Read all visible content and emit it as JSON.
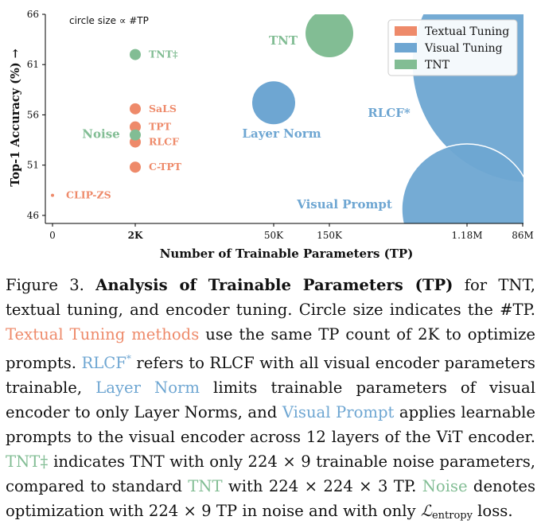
{
  "chart_data": {
    "type": "scatter",
    "xlabel": "Number of Trainable Parameters (TP)",
    "ylabel": "Top-1 Accuracy (%) →",
    "annotation": "circle size ∝ #TP",
    "x_ticks": [
      "0",
      "2K",
      "50K",
      "150K",
      "1.18M",
      "86M"
    ],
    "y_ticks": [
      46,
      51,
      56,
      61,
      66
    ],
    "ylim": [
      45.2,
      66
    ],
    "legend_position": "top-right",
    "colors": {
      "textual": "#ee8a6a",
      "visual": "#6ea6d2",
      "tnt": "#82bd94"
    },
    "series": [
      {
        "name": "Textual Tuning",
        "color": "#ee8a6a",
        "points": [
          {
            "label": "SaLS",
            "x": "2K",
            "y": 56.6
          },
          {
            "label": "TPT",
            "x": "2K",
            "y": 54.8
          },
          {
            "label": "RLCF",
            "x": "2K",
            "y": 53.3
          },
          {
            "label": "C-TPT",
            "x": "2K",
            "y": 50.8
          },
          {
            "label": "CLIP-ZS",
            "x": "0",
            "y": 48.0
          }
        ]
      },
      {
        "name": "Visual Tuning",
        "color": "#6ea6d2",
        "points": [
          {
            "label": "Layer Norm",
            "x": "50K",
            "y": 57.2
          },
          {
            "label": "RLCF*",
            "x": "86M",
            "y": 60.0
          },
          {
            "label": "Visual Prompt",
            "x": "1.18M",
            "y": 46.7
          }
        ]
      },
      {
        "name": "TNT",
        "color": "#82bd94",
        "points": [
          {
            "label": "TNT",
            "x": "150K",
            "y": 64.1
          },
          {
            "label": "TNT‡",
            "x": "2K",
            "y": 62.0
          },
          {
            "label": "Noise",
            "x": "2K",
            "y": 54.0
          }
        ]
      }
    ]
  },
  "caption": {
    "figure_label": "Figure 3.",
    "title": "Analysis of Trainable Parameters (TP)",
    "text1": " for TNT, textual tuning, and encoder tuning. Circle size indicates the #TP. ",
    "textual_methods": "Textual Tuning methods",
    "text2": " use the same TP count of 2K to optimize prompts. ",
    "rlcf": "RLCF",
    "rlcf_star": "*",
    "text3": " refers to RLCF with all visual encoder parameters trainable, ",
    "layer_norm": "Layer Norm",
    "text4": " limits trainable parameters of visual encoder to only Layer Norms, and ",
    "visual_prompt": "Visual Prompt",
    "text5": " applies learnable prompts to the visual encoder across 12 layers of the ViT encoder. ",
    "tnt_dagger": "TNT‡",
    "text6": " indicates TNT with only 224 × 9 trainable noise parameters, compared to standard ",
    "tnt": "TNT",
    "text7": " with 224 × 224 × 3 TP. ",
    "noise": "Noise",
    "text8": " denotes optimization with 224 × 9 TP in noise and with only ",
    "loss_symbol": "ℒ",
    "loss_sub": "entropy",
    "text9": " loss."
  }
}
